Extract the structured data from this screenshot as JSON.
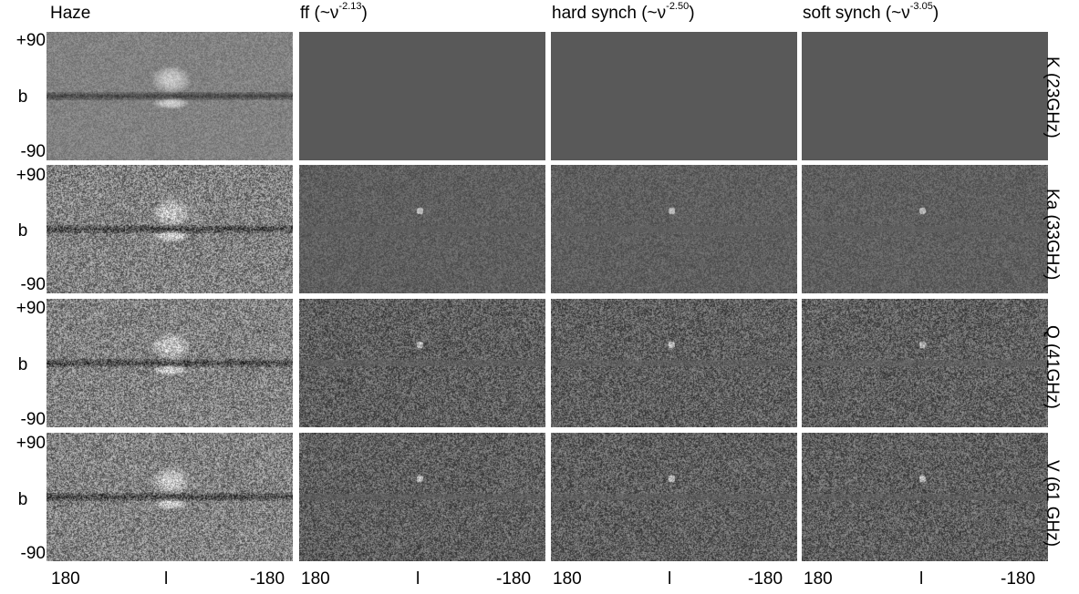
{
  "columns": [
    {
      "label": "Haze",
      "sup": ""
    },
    {
      "label": "ff (~ν",
      "sup": "-2.13",
      "close": ")"
    },
    {
      "label": "hard synch (~ν",
      "sup": "-2.50",
      "close": ")"
    },
    {
      "label": "soft synch (~ν",
      "sup": "-3.05",
      "close": ")"
    }
  ],
  "rows": [
    {
      "label": "K (23GHz)"
    },
    {
      "label": "Ka (33GHz)"
    },
    {
      "label": "Q (41GHz)"
    },
    {
      "label": "V (61 GHz)"
    }
  ],
  "y_axis": {
    "top": "+90",
    "mid": "b",
    "bottom": "-90"
  },
  "x_axis": {
    "left": "180",
    "mid": "l",
    "right": "-180"
  },
  "colors": {
    "background": "#ffffff",
    "blank_panel": "#595959",
    "map_gray": "#7a7a7a"
  }
}
